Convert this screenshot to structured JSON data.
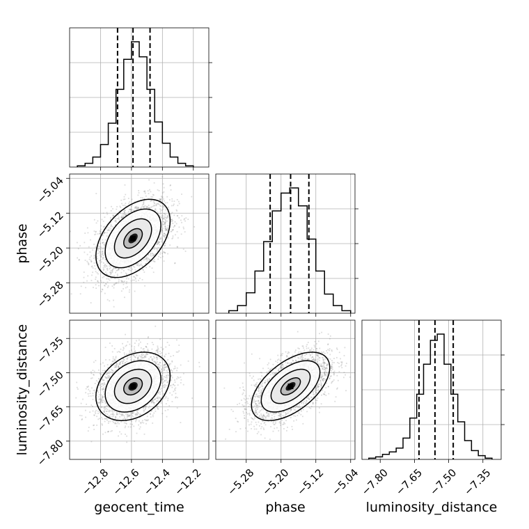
{
  "chart_data": {
    "type": "corner",
    "parameters": [
      "geocent_time",
      "phase",
      "luminosity_distance"
    ],
    "axis_labels": {
      "geocent_time": "geocent_time",
      "phase": "phase",
      "luminosity_distance": "luminosity_distance"
    },
    "ranges": {
      "geocent_time": [
        -13.0,
        -12.1
      ],
      "phase": [
        -5.35,
        -5.03
      ],
      "luminosity_distance": [
        -7.88,
        -7.27
      ]
    },
    "ticks": {
      "geocent_time": [
        "−12.8",
        "−12.6",
        "−12.4",
        "−12.2"
      ],
      "phase": [
        "−5.28",
        "−5.20",
        "−5.12",
        "−5.04"
      ],
      "luminosity_distance": [
        "−7.80",
        "−7.65",
        "−7.50",
        "−7.35"
      ]
    },
    "tick_values": {
      "geocent_time": [
        -12.8,
        -12.6,
        -12.4,
        -12.2
      ],
      "phase": [
        -5.28,
        -5.2,
        -5.12,
        -5.04
      ],
      "luminosity_distance": [
        -7.8,
        -7.65,
        -7.5,
        -7.35
      ]
    },
    "quantiles": {
      "geocent_time": [
        -12.69,
        -12.59,
        -12.48
      ],
      "phase": [
        -5.225,
        -5.178,
        -5.136
      ],
      "luminosity_distance": [
        -7.63,
        -7.56,
        -7.48
      ]
    },
    "histograms": {
      "geocent_time": {
        "edges": [
          -12.95,
          -12.9,
          -12.85,
          -12.8,
          -12.75,
          -12.7,
          -12.65,
          -12.6,
          -12.55,
          -12.5,
          -12.45,
          -12.4,
          -12.35,
          -12.3,
          -12.25,
          -12.2
        ],
        "counts": [
          0.01,
          0.03,
          0.08,
          0.18,
          0.35,
          0.62,
          0.86,
          1.0,
          0.88,
          0.62,
          0.36,
          0.19,
          0.08,
          0.03,
          0.01
        ]
      },
      "phase": {
        "edges": [
          -5.32,
          -5.3,
          -5.28,
          -5.26,
          -5.24,
          -5.22,
          -5.2,
          -5.18,
          -5.16,
          -5.14,
          -5.12,
          -5.1,
          -5.08,
          -5.06,
          -5.04
        ],
        "counts": [
          0.02,
          0.06,
          0.16,
          0.33,
          0.56,
          0.8,
          0.94,
          0.98,
          0.84,
          0.58,
          0.33,
          0.15,
          0.06,
          0.02
        ]
      },
      "luminosity_distance": {
        "edges": [
          -7.85,
          -7.82,
          -7.79,
          -7.76,
          -7.73,
          -7.7,
          -7.67,
          -7.64,
          -7.61,
          -7.58,
          -7.55,
          -7.52,
          -7.49,
          -7.46,
          -7.43,
          -7.4,
          -7.37,
          -7.34,
          -7.31
        ],
        "counts": [
          0.01,
          0.02,
          0.04,
          0.06,
          0.09,
          0.17,
          0.33,
          0.52,
          0.76,
          0.95,
          1.0,
          0.76,
          0.52,
          0.3,
          0.15,
          0.07,
          0.03,
          0.01
        ]
      }
    },
    "pairs": [
      {
        "x": "geocent_time",
        "y": "phase",
        "center": [
          -12.59,
          -5.178
        ],
        "sd": [
          0.12,
          0.045
        ],
        "corr": 0.45,
        "contour_levels_sigma": [
          0.5,
          1.0,
          1.5,
          2.0
        ]
      },
      {
        "x": "geocent_time",
        "y": "luminosity_distance",
        "center": [
          -12.59,
          -7.56
        ],
        "sd": [
          0.12,
          0.075
        ],
        "corr": 0.3,
        "contour_levels_sigma": [
          0.5,
          1.0,
          1.5,
          2.0
        ]
      },
      {
        "x": "phase",
        "y": "luminosity_distance",
        "center": [
          -5.178,
          -7.56
        ],
        "sd": [
          0.045,
          0.075
        ],
        "corr": 0.55,
        "contour_levels_sigma": [
          0.5,
          1.0,
          1.5,
          2.0
        ]
      }
    ],
    "grid": true,
    "scatter_color": "#808080",
    "line_color": "#000000"
  }
}
